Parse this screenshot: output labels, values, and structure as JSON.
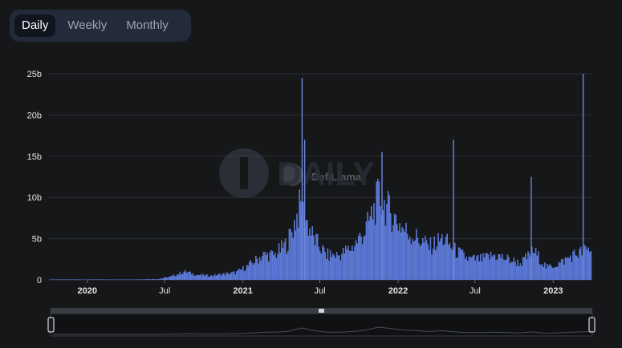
{
  "tabs": [
    {
      "label": "Daily",
      "active": true
    },
    {
      "label": "Weekly",
      "active": false
    },
    {
      "label": "Monthly",
      "active": false
    }
  ],
  "watermark": {
    "defillama": "DefiLlama",
    "daily": "DAILY"
  },
  "colors": {
    "bar": "#5b78d6",
    "background": "#161719",
    "grid": "#2b2e35",
    "tab_bg": "#232a3a",
    "tab_active": "#11151f"
  },
  "chart_data": {
    "type": "bar",
    "title": "",
    "xlabel": "",
    "ylabel": "",
    "ylim": [
      0,
      25
    ],
    "y_unit": "b",
    "yticks": [
      "0",
      "5b",
      "10b",
      "15b",
      "20b",
      "25b"
    ],
    "xticks": [
      "2020",
      "Jul",
      "2021",
      "Jul",
      "2022",
      "Jul",
      "2023"
    ],
    "grid": true,
    "legend": "none",
    "series": [
      {
        "x": [
          "2019-10",
          "2019-12",
          "2020-02",
          "2020-04",
          "2020-06",
          "2020-07",
          "2020-08",
          "2020-09",
          "2020-10",
          "2020-11",
          "2020-12",
          "2021-01",
          "2021-02",
          "2021-03",
          "2021-04",
          "2021-05",
          "2021-06",
          "2021-07",
          "2021-08",
          "2021-09",
          "2021-10",
          "2021-11",
          "2021-12",
          "2022-01",
          "2022-02",
          "2022-03",
          "2022-04",
          "2022-05",
          "2022-06",
          "2022-07",
          "2022-08",
          "2022-09",
          "2022-10",
          "2022-11",
          "2022-12",
          "2023-01",
          "2023-02",
          "2023-03",
          "2023-04"
        ],
        "values": [
          0.05,
          0.05,
          0.05,
          0.05,
          0.1,
          0.4,
          1.0,
          0.6,
          0.5,
          0.7,
          0.9,
          1.8,
          3.0,
          3.0,
          4.5,
          9.0,
          5.0,
          3.0,
          3.0,
          4.0,
          6.0,
          10.0,
          8.0,
          6.0,
          5.0,
          4.0,
          5.0,
          3.5,
          2.5,
          2.5,
          3.0,
          2.5,
          2.0,
          3.5,
          1.5,
          2.0,
          3.0,
          3.5,
          4.0
        ]
      }
    ],
    "spikes": [
      {
        "x": "2021-05-19",
        "value": 24.5
      },
      {
        "x": "2021-05-25",
        "value": 17.0
      },
      {
        "x": "2021-11-23",
        "value": 15.5
      },
      {
        "x": "2022-05-10",
        "value": 17.0
      },
      {
        "x": "2022-11-09",
        "value": 12.5
      },
      {
        "x": "2023-03-11",
        "value": 25.0
      }
    ]
  }
}
